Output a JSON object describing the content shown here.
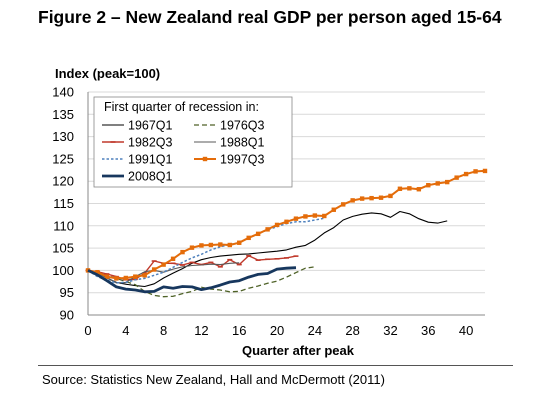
{
  "figure": {
    "title": "Figure 2 – New Zealand real GDP per person aged 15-64",
    "source": "Source:  Statistics New Zealand, Hall and McDermott (2011)"
  },
  "colors": {
    "s1967": "#000000",
    "s1976": "#4f6228",
    "s1982": "#c0392b",
    "s1988": "#595959",
    "s1991": "#4f81bd",
    "s1997": "#e46c0a",
    "s2008": "#17375e",
    "grid": "#d9d9d9"
  },
  "chart_data": {
    "type": "line",
    "title": "",
    "xlabel": "Quarter after peak",
    "ylabel": "Index (peak=100)",
    "xlim": [
      0,
      42
    ],
    "ylim": [
      90,
      140
    ],
    "xticks": [
      0,
      4,
      8,
      12,
      16,
      20,
      24,
      28,
      32,
      36,
      40
    ],
    "yticks": [
      90,
      95,
      100,
      105,
      110,
      115,
      120,
      125,
      130,
      135,
      140
    ],
    "grid": "horizontal",
    "legend_title": "First quarter of recession in:",
    "legend_position": "top-left",
    "series": [
      {
        "name": "1967Q1",
        "color_key": "s1967",
        "style": "solid-thin",
        "x": [
          0,
          1,
          2,
          3,
          4,
          5,
          6,
          7,
          8,
          9,
          10,
          11,
          12,
          13,
          14,
          15,
          16,
          17,
          18,
          19,
          20,
          21,
          22,
          23,
          24,
          25,
          26,
          27,
          28,
          29,
          30,
          31,
          32,
          33,
          34,
          35,
          36,
          37,
          38
        ],
        "y": [
          100,
          99.5,
          98.3,
          97.3,
          96.9,
          96.6,
          96.4,
          97,
          98.3,
          99.4,
          100.4,
          101.6,
          102.4,
          102.9,
          103.2,
          103.4,
          103.6,
          103.7,
          103.9,
          104.1,
          104.3,
          104.6,
          105.2,
          105.6,
          106.8,
          108.4,
          109.6,
          111.3,
          112.1,
          112.6,
          112.9,
          112.7,
          111.9,
          113.2,
          112.7,
          111.6,
          110.8,
          110.6,
          111.1
        ]
      },
      {
        "name": "1976Q3",
        "color_key": "s1976",
        "style": "dashed",
        "x": [
          0,
          1,
          2,
          3,
          4,
          5,
          6,
          7,
          8,
          9,
          10,
          11,
          12,
          13,
          14,
          15,
          16,
          17,
          18,
          19,
          20,
          21,
          22,
          23,
          24
        ],
        "y": [
          100,
          99.6,
          99,
          98.2,
          97.5,
          96.8,
          95.3,
          94.4,
          94.1,
          94.2,
          94.8,
          95.3,
          96.2,
          95.8,
          95.6,
          95.2,
          95.3,
          96,
          96.5,
          97.1,
          97.6,
          98.5,
          99.5,
          100.5,
          100.8
        ]
      },
      {
        "name": "1982Q3",
        "color_key": "s1982",
        "style": "solid-marker",
        "x": [
          0,
          1,
          2,
          3,
          4,
          5,
          6,
          7,
          8,
          9,
          10,
          11,
          12,
          13,
          14,
          15,
          16,
          17,
          18,
          19,
          20,
          21,
          22
        ],
        "y": [
          100,
          99.7,
          99.2,
          98.6,
          97.9,
          98,
          99.4,
          102.1,
          101.6,
          101.6,
          101.2,
          101.8,
          101.3,
          101.8,
          100.8,
          102.4,
          101.3,
          103.3,
          102.3,
          102.5,
          102.6,
          102.8,
          103.2
        ]
      },
      {
        "name": "1988Q1",
        "color_key": "s1988",
        "style": "solid-thin",
        "x": [
          0,
          1,
          2,
          3,
          4,
          5,
          6,
          7,
          8,
          9,
          10,
          11,
          12,
          13,
          14,
          15,
          16
        ],
        "y": [
          100,
          99.3,
          98.4,
          97.2,
          97.3,
          98.6,
          99.7,
          100,
          99.6,
          100.3,
          100.8,
          101.1,
          101.2,
          101.4,
          101.3,
          101.6,
          101.7
        ]
      },
      {
        "name": "1991Q1",
        "color_key": "s1991",
        "style": "dotted",
        "x": [
          0,
          1,
          2,
          3,
          4,
          5,
          6,
          7,
          8,
          9,
          10,
          11,
          12,
          13,
          14,
          15,
          16,
          17,
          18,
          19,
          20,
          21,
          22,
          23,
          24,
          25
        ],
        "y": [
          100,
          98.6,
          97.8,
          97.2,
          97.3,
          97.9,
          98.2,
          98.9,
          99.6,
          100.7,
          101.8,
          102.8,
          103.6,
          104.6,
          105.3,
          105.8,
          106.2,
          107.3,
          108.2,
          109.1,
          109.8,
          110.5,
          110.9,
          110.9,
          111.3,
          111.7
        ]
      },
      {
        "name": "1997Q3",
        "color_key": "s1997",
        "style": "solid-square",
        "x": [
          0,
          1,
          2,
          3,
          4,
          5,
          6,
          7,
          8,
          9,
          10,
          11,
          12,
          13,
          14,
          15,
          16,
          17,
          18,
          19,
          20,
          21,
          22,
          23,
          24,
          25,
          26,
          27,
          28,
          29,
          30,
          31,
          32,
          33,
          34,
          35,
          36,
          37,
          38,
          39,
          40,
          41,
          42
        ],
        "y": [
          100,
          99.6,
          98.6,
          98.2,
          98.3,
          98.6,
          98.9,
          100.2,
          101.3,
          102.6,
          104.1,
          105.1,
          105.6,
          105.7,
          105.8,
          105.7,
          106.2,
          107.3,
          108.2,
          109.2,
          110.2,
          110.9,
          111.6,
          112.1,
          112.3,
          112.2,
          113.6,
          114.8,
          115.7,
          116.1,
          116.2,
          116.3,
          116.7,
          118.3,
          118.4,
          118.2,
          119.1,
          119.5,
          119.8,
          120.8,
          121.6,
          122.2,
          122.3
        ]
      },
      {
        "name": "2008Q1",
        "color_key": "s2008",
        "style": "solid-thick",
        "x": [
          0,
          1,
          2,
          3,
          4,
          5,
          6,
          7,
          8,
          9,
          10,
          11,
          12,
          13,
          14,
          15,
          16,
          17,
          18,
          19,
          20,
          21,
          22
        ],
        "y": [
          100,
          99,
          97.7,
          96.3,
          95.8,
          95.6,
          95.2,
          95.3,
          96.3,
          96,
          96.4,
          96.3,
          95.7,
          96.1,
          96.7,
          97.4,
          97.7,
          98.5,
          99.1,
          99.3,
          100.3,
          100.5,
          100.6
        ]
      }
    ]
  }
}
